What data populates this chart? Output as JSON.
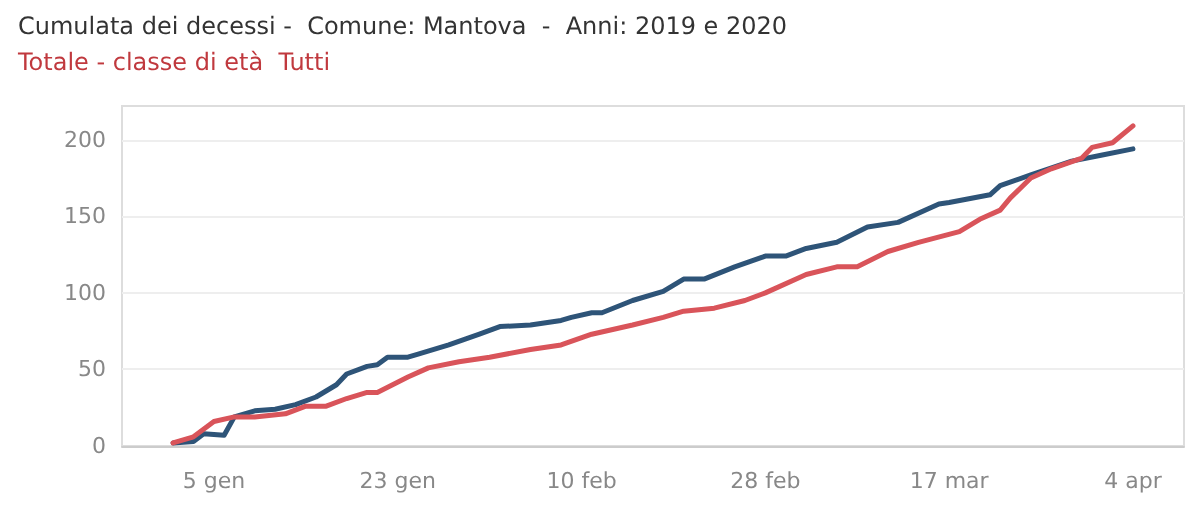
{
  "chart_data": {
    "type": "line",
    "title": "Cumulata dei decessi -  Comune: Mantova  -  Anni: 2019 e 2020",
    "subtitle": "Totale - classe di età  Tutti",
    "series": [
      {
        "color": "#2e5478",
        "x": [
          "2020-01-01",
          "2020-01-03",
          "2020-01-04",
          "2020-01-06",
          "2020-01-07",
          "2020-01-09",
          "2020-01-11",
          "2020-01-13",
          "2020-01-15",
          "2020-01-17",
          "2020-01-18",
          "2020-01-20",
          "2020-01-21",
          "2020-01-22",
          "2020-01-24",
          "2020-01-25",
          "2020-01-28",
          "2020-01-31",
          "2020-02-02",
          "2020-02-05",
          "2020-02-08",
          "2020-02-09",
          "2020-02-11",
          "2020-02-12",
          "2020-02-15",
          "2020-02-18",
          "2020-02-20",
          "2020-02-22",
          "2020-02-25",
          "2020-02-28",
          "2020-03-01",
          "2020-03-03",
          "2020-03-06",
          "2020-03-09",
          "2020-03-12",
          "2020-03-16",
          "2020-03-17",
          "2020-03-21",
          "2020-03-22",
          "2020-03-25",
          "2020-03-29",
          "2020-04-01",
          "2020-04-04"
        ],
        "values": [
          2,
          3,
          8,
          7,
          19,
          23,
          24,
          27,
          32,
          40,
          47,
          52,
          53,
          58,
          58,
          60,
          66,
          73,
          78,
          79,
          82,
          84,
          87,
          87,
          95,
          101,
          109,
          109,
          117,
          124,
          124,
          129,
          133,
          143,
          146,
          158,
          159,
          164,
          170,
          177,
          186,
          190,
          194
        ]
      },
      {
        "color": "#d9545a",
        "x": [
          "2020-01-01",
          "2020-01-03",
          "2020-01-05",
          "2020-01-07",
          "2020-01-09",
          "2020-01-12",
          "2020-01-14",
          "2020-01-16",
          "2020-01-18",
          "2020-01-20",
          "2020-01-21",
          "2020-01-24",
          "2020-01-26",
          "2020-01-29",
          "2020-02-01",
          "2020-02-05",
          "2020-02-08",
          "2020-02-11",
          "2020-02-15",
          "2020-02-18",
          "2020-02-20",
          "2020-02-23",
          "2020-02-26",
          "2020-02-28",
          "2020-03-03",
          "2020-03-06",
          "2020-03-08",
          "2020-03-11",
          "2020-03-14",
          "2020-03-18",
          "2020-03-20",
          "2020-03-22",
          "2020-03-23",
          "2020-03-25",
          "2020-03-27",
          "2020-03-30",
          "2020-03-31",
          "2020-04-02",
          "2020-04-04"
        ],
        "values": [
          2,
          6,
          16,
          19,
          19,
          21,
          26,
          26,
          31,
          35,
          35,
          45,
          51,
          55,
          58,
          63,
          66,
          73,
          79,
          84,
          88,
          90,
          95,
          100,
          112,
          117,
          117,
          127,
          133,
          140,
          148,
          154,
          162,
          175,
          181,
          188,
          195,
          198,
          209
        ]
      }
    ],
    "xlim": [
      "2019-12-27",
      "2020-04-09"
    ],
    "xticks": [
      {
        "value": "2020-01-05",
        "label": "5 gen"
      },
      {
        "value": "2020-01-23",
        "label": "23 gen"
      },
      {
        "value": "2020-02-10",
        "label": "10 feb"
      },
      {
        "value": "2020-02-28",
        "label": "28 feb"
      },
      {
        "value": "2020-03-17",
        "label": "17 mar"
      },
      {
        "value": "2020-04-04",
        "label": "4 apr"
      }
    ],
    "ylim": [
      0,
      222
    ],
    "yticks": [
      0,
      50,
      100,
      150,
      200
    ],
    "grid": "y",
    "marker": "none",
    "line_style": "solid"
  }
}
